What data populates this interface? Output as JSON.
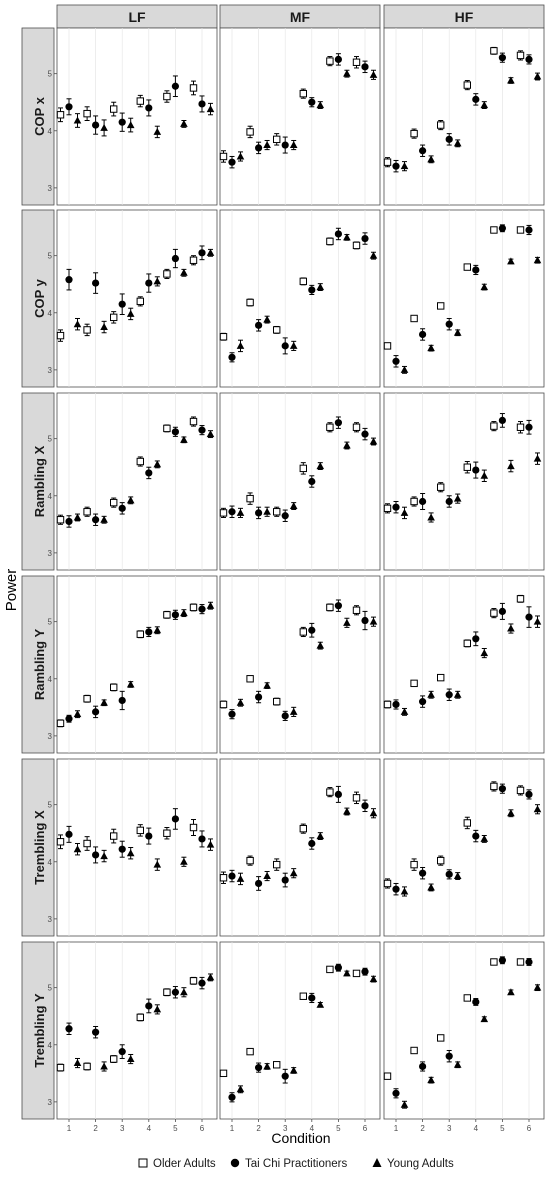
{
  "figure": {
    "ylabel": "Power",
    "xlabel": "Condition",
    "columns": [
      "LF",
      "MF",
      "HF"
    ],
    "rows": [
      "COP x",
      "COP y",
      "Rambling X",
      "Rambling Y",
      "Trembling X",
      "Trembling Y"
    ],
    "legend_position": "bottom",
    "legend": [
      {
        "name": "Older Adults",
        "marker": "open-square"
      },
      {
        "name": "Tai Chi Practitioners",
        "marker": "filled-circle"
      },
      {
        "name": "Young Adults",
        "marker": "filled-triangle"
      }
    ],
    "colors": {
      "panel_bg": "#ffffff",
      "strip_bg": "#d9d9d9",
      "grid": "#e6e6e6",
      "marks": "#000000",
      "axis_text": "#4d4d4d"
    }
  },
  "chart_data": {
    "type": "scatter",
    "error_bars": true,
    "grid": true,
    "x": [
      1,
      2,
      3,
      4,
      5,
      6
    ],
    "xticks": [
      "1",
      "2",
      "3",
      "4",
      "5",
      "6"
    ],
    "yticks": [
      "3",
      "4",
      "5"
    ],
    "ylim": [
      2.7,
      5.8
    ],
    "series_names": [
      "Older Adults",
      "Tai Chi Practitioners",
      "Young Adults"
    ],
    "panels": [
      {
        "row": "COP x",
        "col": "LF",
        "values": [
          [
            4.28,
            4.3,
            4.38,
            4.52,
            4.6,
            4.75
          ],
          [
            4.42,
            4.1,
            4.15,
            4.4,
            4.78,
            4.47
          ],
          [
            4.18,
            4.05,
            4.1,
            3.98,
            4.12,
            4.38
          ]
        ],
        "err": [
          [
            0.12,
            0.12,
            0.12,
            0.1,
            0.1,
            0.12
          ],
          [
            0.14,
            0.16,
            0.16,
            0.14,
            0.18,
            0.14
          ],
          [
            0.12,
            0.14,
            0.12,
            0.1,
            0.06,
            0.1
          ]
        ]
      },
      {
        "row": "COP x",
        "col": "MF",
        "values": [
          [
            3.55,
            3.98,
            3.85,
            4.65,
            5.22,
            5.2
          ],
          [
            3.45,
            3.7,
            3.75,
            4.5,
            5.25,
            5.12
          ],
          [
            3.55,
            3.75,
            3.75,
            4.45,
            5.0,
            4.98
          ]
        ],
        "err": [
          [
            0.1,
            0.1,
            0.1,
            0.08,
            0.08,
            0.1
          ],
          [
            0.1,
            0.1,
            0.14,
            0.08,
            0.1,
            0.1
          ],
          [
            0.08,
            0.08,
            0.08,
            0.06,
            0.06,
            0.08
          ]
        ]
      },
      {
        "row": "COP x",
        "col": "HF",
        "values": [
          [
            3.45,
            3.95,
            4.1,
            4.8,
            5.4,
            5.32
          ],
          [
            3.38,
            3.65,
            3.85,
            4.55,
            5.28,
            5.25
          ],
          [
            3.38,
            3.5,
            3.78,
            4.45,
            4.88,
            4.95
          ]
        ],
        "err": [
          [
            0.08,
            0.08,
            0.08,
            0.08,
            0.06,
            0.08
          ],
          [
            0.1,
            0.1,
            0.1,
            0.1,
            0.08,
            0.08
          ],
          [
            0.08,
            0.06,
            0.06,
            0.06,
            0.05,
            0.06
          ]
        ]
      },
      {
        "row": "COP y",
        "col": "LF",
        "values": [
          [
            3.6,
            3.7,
            3.92,
            4.2,
            4.68,
            4.92
          ],
          [
            4.58,
            4.52,
            4.15,
            4.52,
            4.95,
            5.05
          ],
          [
            3.8,
            3.75,
            3.98,
            4.55,
            4.7,
            5.05
          ]
        ],
        "err": [
          [
            0.1,
            0.1,
            0.1,
            0.08,
            0.08,
            0.08
          ],
          [
            0.18,
            0.18,
            0.18,
            0.16,
            0.16,
            0.12
          ],
          [
            0.1,
            0.1,
            0.1,
            0.08,
            0.06,
            0.06
          ]
        ]
      },
      {
        "row": "COP y",
        "col": "MF",
        "values": [
          [
            3.58,
            4.18,
            3.7,
            4.55,
            5.25,
            5.18
          ],
          [
            3.22,
            3.78,
            3.42,
            4.4,
            5.38,
            5.3
          ],
          [
            3.42,
            3.88,
            3.42,
            4.45,
            5.32,
            5.0
          ]
        ],
        "err": [
          [
            0.06,
            0.06,
            0.06,
            0.06,
            0.06,
            0.06
          ],
          [
            0.08,
            0.1,
            0.14,
            0.08,
            0.1,
            0.1
          ],
          [
            0.1,
            0.06,
            0.08,
            0.06,
            0.05,
            0.06
          ]
        ]
      },
      {
        "row": "COP y",
        "col": "HF",
        "values": [
          [
            3.42,
            3.9,
            4.12,
            4.8,
            5.45,
            5.45
          ],
          [
            3.15,
            3.62,
            3.8,
            4.75,
            5.48,
            5.45
          ],
          [
            3.0,
            3.38,
            3.65,
            4.45,
            4.9,
            4.92
          ]
        ],
        "err": [
          [
            0.05,
            0.05,
            0.05,
            0.05,
            0.04,
            0.05
          ],
          [
            0.1,
            0.1,
            0.1,
            0.08,
            0.06,
            0.08
          ],
          [
            0.06,
            0.05,
            0.05,
            0.05,
            0.04,
            0.05
          ]
        ]
      },
      {
        "row": "Rambling X",
        "col": "LF",
        "values": [
          [
            3.58,
            3.72,
            3.88,
            4.6,
            5.18,
            5.3
          ],
          [
            3.55,
            3.58,
            3.78,
            4.4,
            5.12,
            5.15
          ],
          [
            3.62,
            3.58,
            3.92,
            4.55,
            4.98,
            5.08
          ]
        ],
        "err": [
          [
            0.08,
            0.08,
            0.08,
            0.08,
            0.06,
            0.08
          ],
          [
            0.1,
            0.1,
            0.1,
            0.1,
            0.08,
            0.08
          ],
          [
            0.06,
            0.06,
            0.06,
            0.06,
            0.05,
            0.06
          ]
        ]
      },
      {
        "row": "Rambling X",
        "col": "MF",
        "values": [
          [
            3.7,
            3.95,
            3.72,
            4.48,
            5.2,
            5.2
          ],
          [
            3.72,
            3.7,
            3.65,
            4.25,
            5.28,
            5.08
          ],
          [
            3.7,
            3.72,
            3.82,
            4.52,
            4.88,
            4.95
          ]
        ],
        "err": [
          [
            0.08,
            0.1,
            0.08,
            0.1,
            0.08,
            0.08
          ],
          [
            0.1,
            0.1,
            0.1,
            0.1,
            0.1,
            0.1
          ],
          [
            0.08,
            0.08,
            0.06,
            0.06,
            0.06,
            0.06
          ]
        ]
      },
      {
        "row": "Rambling X",
        "col": "HF",
        "values": [
          [
            3.78,
            3.9,
            4.15,
            4.5,
            5.22,
            5.2
          ],
          [
            3.8,
            3.9,
            3.9,
            4.45,
            5.32,
            5.2
          ],
          [
            3.7,
            3.62,
            3.95,
            4.35,
            4.52,
            4.65
          ]
        ],
        "err": [
          [
            0.08,
            0.08,
            0.08,
            0.1,
            0.08,
            0.1
          ],
          [
            0.1,
            0.14,
            0.1,
            0.14,
            0.12,
            0.12
          ],
          [
            0.1,
            0.08,
            0.08,
            0.1,
            0.1,
            0.1
          ]
        ]
      },
      {
        "row": "Rambling Y",
        "col": "LF",
        "values": [
          [
            3.22,
            3.65,
            3.85,
            4.78,
            5.12,
            5.25
          ],
          [
            3.3,
            3.42,
            3.62,
            4.82,
            5.12,
            5.22
          ],
          [
            3.38,
            3.58,
            3.9,
            4.85,
            5.15,
            5.28
          ]
        ],
        "err": [
          [
            0.06,
            0.06,
            0.06,
            0.06,
            0.06,
            0.06
          ],
          [
            0.06,
            0.1,
            0.16,
            0.08,
            0.08,
            0.08
          ],
          [
            0.06,
            0.05,
            0.05,
            0.06,
            0.06,
            0.06
          ]
        ]
      },
      {
        "row": "Rambling Y",
        "col": "MF",
        "values": [
          [
            3.55,
            4.0,
            3.6,
            4.82,
            5.25,
            5.2
          ],
          [
            3.38,
            3.68,
            3.35,
            4.85,
            5.28,
            5.02
          ],
          [
            3.58,
            3.88,
            3.42,
            4.58,
            4.98,
            5.0
          ]
        ],
        "err": [
          [
            0.06,
            0.05,
            0.06,
            0.08,
            0.06,
            0.08
          ],
          [
            0.08,
            0.1,
            0.08,
            0.12,
            0.1,
            0.16
          ],
          [
            0.06,
            0.05,
            0.08,
            0.06,
            0.08,
            0.08
          ]
        ]
      },
      {
        "row": "Rambling Y",
        "col": "HF",
        "values": [
          [
            3.55,
            3.92,
            4.02,
            4.62,
            5.15,
            5.4
          ],
          [
            3.55,
            3.6,
            3.72,
            4.7,
            5.18,
            5.08
          ],
          [
            3.42,
            3.72,
            3.72,
            4.45,
            4.88,
            5.0
          ]
        ],
        "err": [
          [
            0.06,
            0.05,
            0.05,
            0.06,
            0.08,
            0.06
          ],
          [
            0.08,
            0.1,
            0.1,
            0.12,
            0.14,
            0.18
          ],
          [
            0.06,
            0.06,
            0.06,
            0.08,
            0.08,
            0.1
          ]
        ]
      },
      {
        "row": "Trembling X",
        "col": "LF",
        "values": [
          [
            4.35,
            4.32,
            4.45,
            4.55,
            4.5,
            4.6
          ],
          [
            4.48,
            4.12,
            4.22,
            4.45,
            4.75,
            4.4
          ],
          [
            4.22,
            4.1,
            4.15,
            3.95,
            4.0,
            4.3
          ]
        ],
        "err": [
          [
            0.12,
            0.12,
            0.12,
            0.1,
            0.1,
            0.14
          ],
          [
            0.14,
            0.14,
            0.14,
            0.14,
            0.18,
            0.14
          ],
          [
            0.1,
            0.1,
            0.1,
            0.1,
            0.08,
            0.1
          ]
        ]
      },
      {
        "row": "Trembling X",
        "col": "MF",
        "values": [
          [
            3.72,
            4.02,
            3.95,
            4.58,
            5.22,
            5.12
          ],
          [
            3.75,
            3.62,
            3.68,
            4.32,
            5.18,
            4.98
          ],
          [
            3.7,
            3.75,
            3.8,
            4.45,
            4.88,
            4.85
          ]
        ],
        "err": [
          [
            0.1,
            0.08,
            0.1,
            0.08,
            0.08,
            0.1
          ],
          [
            0.1,
            0.12,
            0.12,
            0.1,
            0.14,
            0.1
          ],
          [
            0.1,
            0.08,
            0.08,
            0.06,
            0.06,
            0.08
          ]
        ]
      },
      {
        "row": "Trembling X",
        "col": "HF",
        "values": [
          [
            3.62,
            3.95,
            4.02,
            4.68,
            5.32,
            5.25
          ],
          [
            3.52,
            3.8,
            3.78,
            4.45,
            5.28,
            5.18
          ],
          [
            3.48,
            3.55,
            3.75,
            4.4,
            4.85,
            4.92
          ]
        ],
        "err": [
          [
            0.08,
            0.1,
            0.08,
            0.1,
            0.08,
            0.08
          ],
          [
            0.1,
            0.1,
            0.08,
            0.1,
            0.08,
            0.08
          ],
          [
            0.08,
            0.06,
            0.06,
            0.06,
            0.06,
            0.08
          ]
        ]
      },
      {
        "row": "Trembling Y",
        "col": "LF",
        "values": [
          [
            3.6,
            3.62,
            3.75,
            4.48,
            4.92,
            5.12
          ],
          [
            4.28,
            4.22,
            3.88,
            4.68,
            4.92,
            5.08
          ],
          [
            3.68,
            3.62,
            3.75,
            4.62,
            4.92,
            5.18
          ]
        ],
        "err": [
          [
            0.06,
            0.06,
            0.06,
            0.06,
            0.06,
            0.06
          ],
          [
            0.1,
            0.1,
            0.12,
            0.12,
            0.1,
            0.1
          ],
          [
            0.08,
            0.08,
            0.08,
            0.08,
            0.08,
            0.06
          ]
        ]
      },
      {
        "row": "Trembling Y",
        "col": "MF",
        "values": [
          [
            3.5,
            3.88,
            3.65,
            4.85,
            5.32,
            5.25
          ],
          [
            3.08,
            3.6,
            3.45,
            4.82,
            5.35,
            5.28
          ],
          [
            3.22,
            3.62,
            3.55,
            4.7,
            5.25,
            5.15
          ]
        ],
        "err": [
          [
            0.04,
            0.04,
            0.04,
            0.04,
            0.04,
            0.04
          ],
          [
            0.08,
            0.08,
            0.12,
            0.08,
            0.06,
            0.06
          ],
          [
            0.06,
            0.05,
            0.05,
            0.04,
            0.04,
            0.05
          ]
        ]
      },
      {
        "row": "Trembling Y",
        "col": "HF",
        "values": [
          [
            3.45,
            3.9,
            4.12,
            4.82,
            5.45,
            5.45
          ],
          [
            3.15,
            3.62,
            3.8,
            4.75,
            5.48,
            5.45
          ],
          [
            2.95,
            3.38,
            3.65,
            4.45,
            4.92,
            5.0
          ]
        ],
        "err": [
          [
            0.04,
            0.04,
            0.04,
            0.05,
            0.04,
            0.04
          ],
          [
            0.08,
            0.08,
            0.1,
            0.06,
            0.06,
            0.06
          ],
          [
            0.06,
            0.05,
            0.05,
            0.04,
            0.04,
            0.05
          ]
        ]
      }
    ]
  }
}
